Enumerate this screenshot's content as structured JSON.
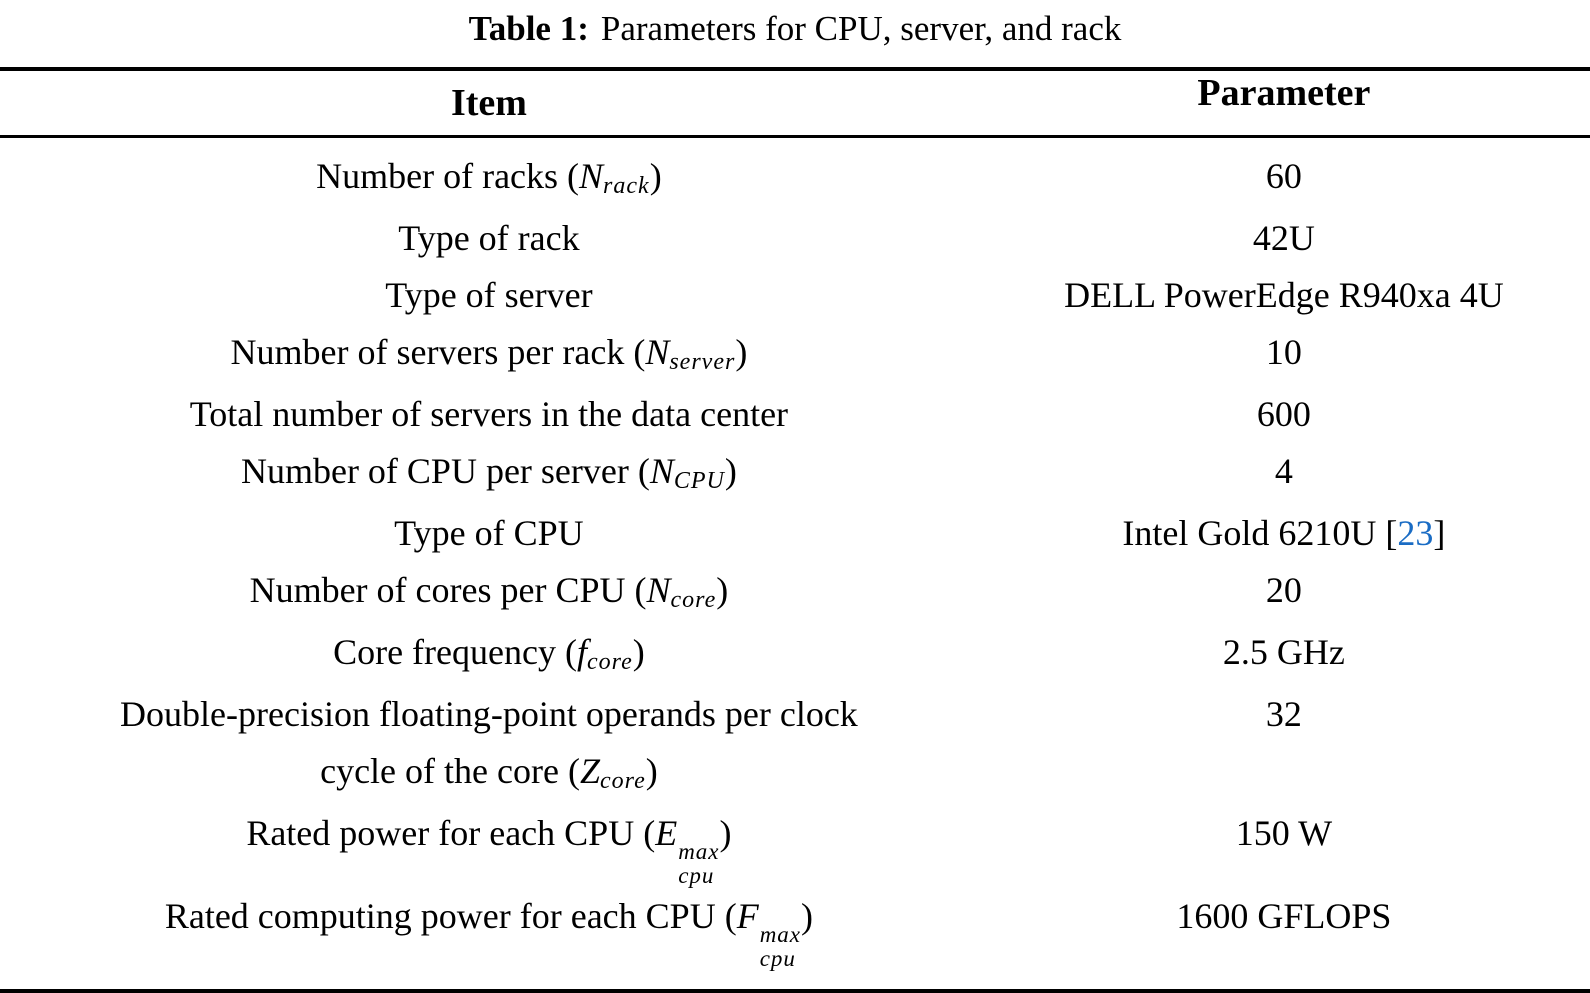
{
  "title": {
    "label": "Table 1:",
    "caption": "Parameters for CPU, server, and rack"
  },
  "colors": {
    "text": "#000000",
    "link": "#1a6cc4",
    "rule": "#000000",
    "background": "#ffffff"
  },
  "table": {
    "header": {
      "item": "Item",
      "parameter": "Parameter"
    },
    "rows": [
      {
        "item": [
          {
            "t": "Number of racks ("
          },
          {
            "v": "N",
            "sub": "rack"
          },
          {
            "t": ")"
          }
        ],
        "param": [
          {
            "t": "60"
          }
        ]
      },
      {
        "item": [
          {
            "t": "Type of rack"
          }
        ],
        "param": [
          {
            "t": "42U"
          }
        ]
      },
      {
        "item": [
          {
            "t": "Type of server"
          }
        ],
        "param": [
          {
            "t": "DELL PowerEdge R940xa 4U"
          }
        ]
      },
      {
        "item": [
          {
            "t": "Number of servers per rack ("
          },
          {
            "v": "N",
            "sub": "server"
          },
          {
            "t": ")"
          }
        ],
        "param": [
          {
            "t": "10"
          }
        ]
      },
      {
        "item": [
          {
            "t": "Total number of servers in the data center"
          }
        ],
        "param": [
          {
            "t": "600"
          }
        ]
      },
      {
        "item": [
          {
            "t": "Number of CPU per server ("
          },
          {
            "v": "N",
            "sub": "CPU"
          },
          {
            "t": ")"
          }
        ],
        "param": [
          {
            "t": "4"
          }
        ]
      },
      {
        "item": [
          {
            "t": "Type of CPU"
          }
        ],
        "param": [
          {
            "t": "Intel Gold 6210U ["
          },
          {
            "link": "23"
          },
          {
            "t": "]"
          }
        ]
      },
      {
        "item": [
          {
            "t": "Number of cores per CPU ("
          },
          {
            "v": "N",
            "sub": "core"
          },
          {
            "t": ")"
          }
        ],
        "param": [
          {
            "t": "20"
          }
        ]
      },
      {
        "item": [
          {
            "t": "Core frequency ("
          },
          {
            "v": "f",
            "sub": "core"
          },
          {
            "t": ")"
          }
        ],
        "param": [
          {
            "t": "2.5 GHz"
          }
        ]
      },
      {
        "item": [
          {
            "t": "Double-precision floating-point operands per clock"
          },
          {
            "br": true
          },
          {
            "t": "cycle of the core ("
          },
          {
            "v": "Z",
            "sub": "core"
          },
          {
            "t": ")"
          }
        ],
        "param": [
          {
            "t": "32"
          }
        ]
      },
      {
        "item": [
          {
            "t": "Rated power for each CPU ("
          },
          {
            "v": "E",
            "sub": "cpu",
            "sup": "max"
          },
          {
            "t": ")"
          }
        ],
        "param": [
          {
            "t": "150 W"
          }
        ]
      },
      {
        "item": [
          {
            "t": "Rated computing power for each CPU ("
          },
          {
            "v": "F",
            "sub": "cpu",
            "sup": "max"
          },
          {
            "t": ")"
          }
        ],
        "param": [
          {
            "t": "1600 GFLOPS"
          }
        ]
      }
    ]
  },
  "chart_data": {
    "type": "table",
    "title": "Table 1: Parameters for CPU, server, and rack",
    "columns": [
      "Item",
      "Parameter"
    ],
    "rows": [
      [
        "Number of racks (N_rack)",
        "60"
      ],
      [
        "Type of rack",
        "42U"
      ],
      [
        "Type of server",
        "DELL PowerEdge R940xa 4U"
      ],
      [
        "Number of servers per rack (N_server)",
        "10"
      ],
      [
        "Total number of servers in the data center",
        "600"
      ],
      [
        "Number of CPU per server (N_CPU)",
        "4"
      ],
      [
        "Type of CPU",
        "Intel Gold 6210U [23]"
      ],
      [
        "Number of cores per CPU (N_core)",
        "20"
      ],
      [
        "Core frequency (f_core)",
        "2.5 GHz"
      ],
      [
        "Double-precision floating-point operands per clock cycle of the core (Z_core)",
        "32"
      ],
      [
        "Rated power for each CPU (E_cpu^max)",
        "150 W"
      ],
      [
        "Rated computing power for each CPU (F_cpu^max)",
        "1600 GFLOPS"
      ]
    ]
  }
}
